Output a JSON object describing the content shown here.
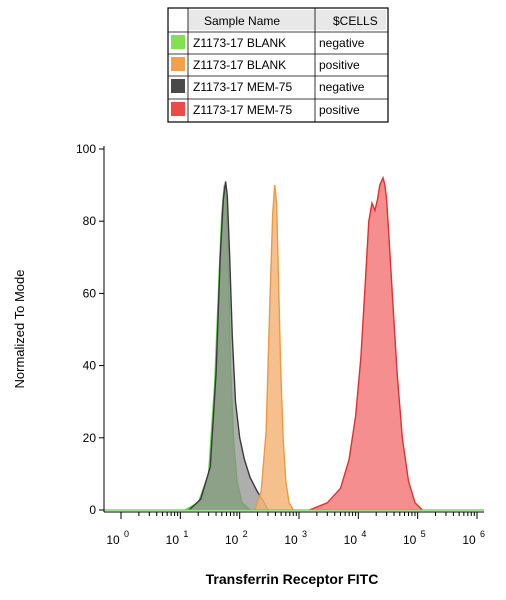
{
  "chart_data": {
    "type": "area",
    "title": "",
    "xlabel": "Transferrin Receptor FITC",
    "ylabel": "Normalized To Mode",
    "x_scale": "log",
    "xlim": [
      1,
      1000000
    ],
    "ylim": [
      0,
      100
    ],
    "y_ticks": [
      "0",
      "20",
      "40",
      "60",
      "80",
      "100"
    ],
    "x_ticks": [
      {
        "base": "10",
        "exp": "0"
      },
      {
        "base": "10",
        "exp": "1"
      },
      {
        "base": "10",
        "exp": "2"
      },
      {
        "base": "10",
        "exp": "3"
      },
      {
        "base": "10",
        "exp": "4"
      },
      {
        "base": "10",
        "exp": "5"
      },
      {
        "base": "10",
        "exp": "6"
      }
    ],
    "grid": false,
    "legend": {
      "position": "top-center",
      "headers": [
        "Sample Name",
        "$CELLS"
      ],
      "entries": [
        {
          "sample": "Z1173-17 BLANK",
          "cells": "negative",
          "color": "#7FE34F"
        },
        {
          "sample": "Z1173-17 BLANK",
          "cells": "positive",
          "color": "#F7A04A"
        },
        {
          "sample": "Z1173-17 MEM-75",
          "cells": "negative",
          "color": "#4A4A4A"
        },
        {
          "sample": "Z1173-17 MEM-75",
          "cells": "positive",
          "color": "#EE4A4A"
        }
      ]
    },
    "series": [
      {
        "fill": "#7ec86a",
        "stroke": "#5CD04A",
        "opacity": 0.85,
        "x": [
          12,
          20,
          30,
          38,
          45,
          50,
          55,
          60,
          65,
          70,
          80,
          90,
          110,
          150
        ],
        "y": [
          0,
          2,
          10,
          35,
          65,
          82,
          90,
          85,
          65,
          40,
          18,
          8,
          2,
          0
        ]
      },
      {
        "fill": "#8c8c8c",
        "stroke": "#3a3a3a",
        "opacity": 0.7,
        "x": [
          14,
          22,
          32,
          40,
          47,
          53,
          58,
          62,
          68,
          75,
          85,
          100,
          120,
          150,
          200,
          260,
          300
        ],
        "y": [
          0,
          3,
          12,
          38,
          70,
          86,
          91,
          87,
          70,
          48,
          30,
          20,
          14,
          9,
          5,
          2,
          0
        ]
      },
      {
        "fill": "#f5b57a",
        "stroke": "#EC9A40",
        "opacity": 0.85,
        "x": [
          180,
          230,
          280,
          320,
          360,
          390,
          420,
          450,
          490,
          540,
          600,
          680,
          800
        ],
        "y": [
          0,
          5,
          22,
          55,
          82,
          90,
          85,
          65,
          40,
          20,
          8,
          2,
          0
        ]
      },
      {
        "fill": "#f37a7a",
        "stroke": "#E03030",
        "opacity": 0.85,
        "x": [
          1500,
          3000,
          5000,
          7000,
          9000,
          11000,
          13000,
          15000,
          17000,
          19000,
          21000,
          23000,
          26000,
          28000,
          30000,
          33000,
          38000,
          45000,
          55000,
          70000,
          90000,
          120000
        ],
        "y": [
          0,
          2,
          6,
          14,
          26,
          42,
          62,
          80,
          85,
          83,
          86,
          90,
          92,
          90,
          86,
          75,
          58,
          38,
          20,
          8,
          2,
          0
        ]
      }
    ]
  }
}
